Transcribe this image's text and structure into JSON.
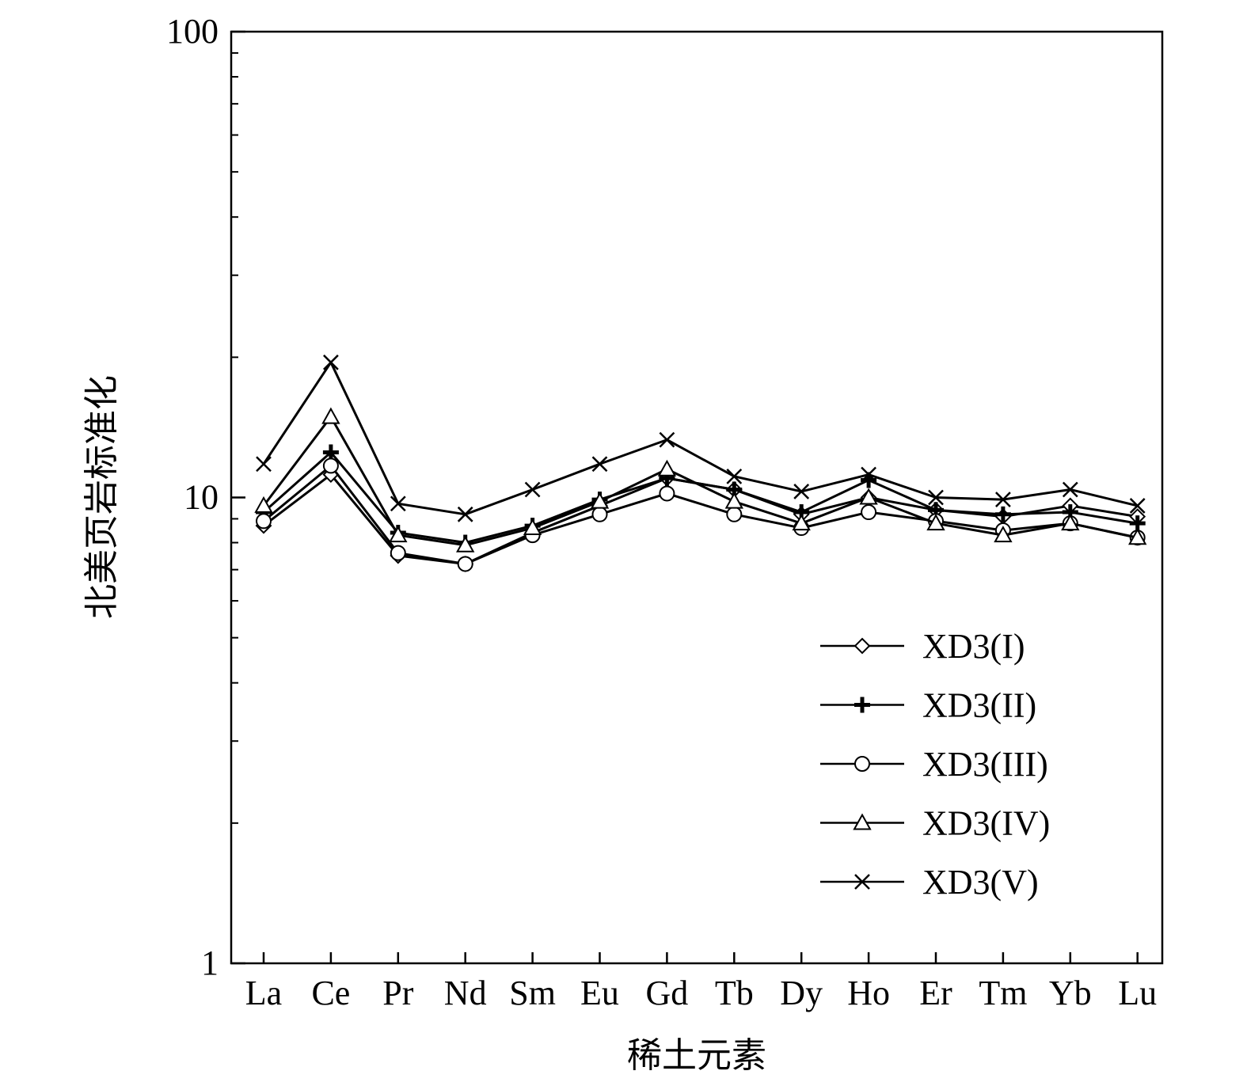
{
  "chart_data": {
    "type": "line",
    "title": "",
    "xlabel": "稀土元素",
    "ylabel": "北美页岩标准化",
    "yscale": "log",
    "ylim": [
      1,
      100
    ],
    "yticks": [
      {
        "value": 1,
        "label": "1"
      },
      {
        "value": 10,
        "label": "10"
      },
      {
        "value": 100,
        "label": "100"
      }
    ],
    "categories": [
      "La",
      "Ce",
      "Pr",
      "Nd",
      "Sm",
      "Eu",
      "Gd",
      "Tb",
      "Dy",
      "Ho",
      "Er",
      "Tm",
      "Yb",
      "Lu"
    ],
    "grid": false,
    "legend_position": "bottom-right",
    "line_color": "#000000",
    "series": [
      {
        "name": "XD3(I)",
        "marker": "diamond",
        "values": [
          8.7,
          11.2,
          7.5,
          7.2,
          8.4,
          9.6,
          11.0,
          10.4,
          9.2,
          10.0,
          9.4,
          9.1,
          9.6,
          9.1
        ]
      },
      {
        "name": "XD3(II)",
        "marker": "plus",
        "values": [
          9.3,
          12.5,
          8.4,
          8.0,
          8.7,
          9.9,
          11.0,
          10.4,
          9.3,
          10.9,
          9.4,
          9.2,
          9.3,
          8.8
        ]
      },
      {
        "name": "XD3(III)",
        "marker": "circle",
        "values": [
          8.9,
          11.7,
          7.6,
          7.2,
          8.3,
          9.2,
          10.2,
          9.2,
          8.6,
          9.3,
          8.9,
          8.5,
          8.8,
          8.2
        ]
      },
      {
        "name": "XD3(IV)",
        "marker": "triangle",
        "values": [
          9.6,
          14.9,
          8.3,
          7.9,
          8.6,
          9.8,
          11.5,
          9.8,
          8.8,
          10.0,
          8.8,
          8.3,
          8.8,
          8.2
        ]
      },
      {
        "name": "XD3(V)",
        "marker": "cross",
        "values": [
          11.8,
          19.5,
          9.7,
          9.2,
          10.4,
          11.8,
          13.3,
          11.1,
          10.3,
          11.2,
          10.0,
          9.9,
          10.4,
          9.6
        ]
      }
    ]
  }
}
